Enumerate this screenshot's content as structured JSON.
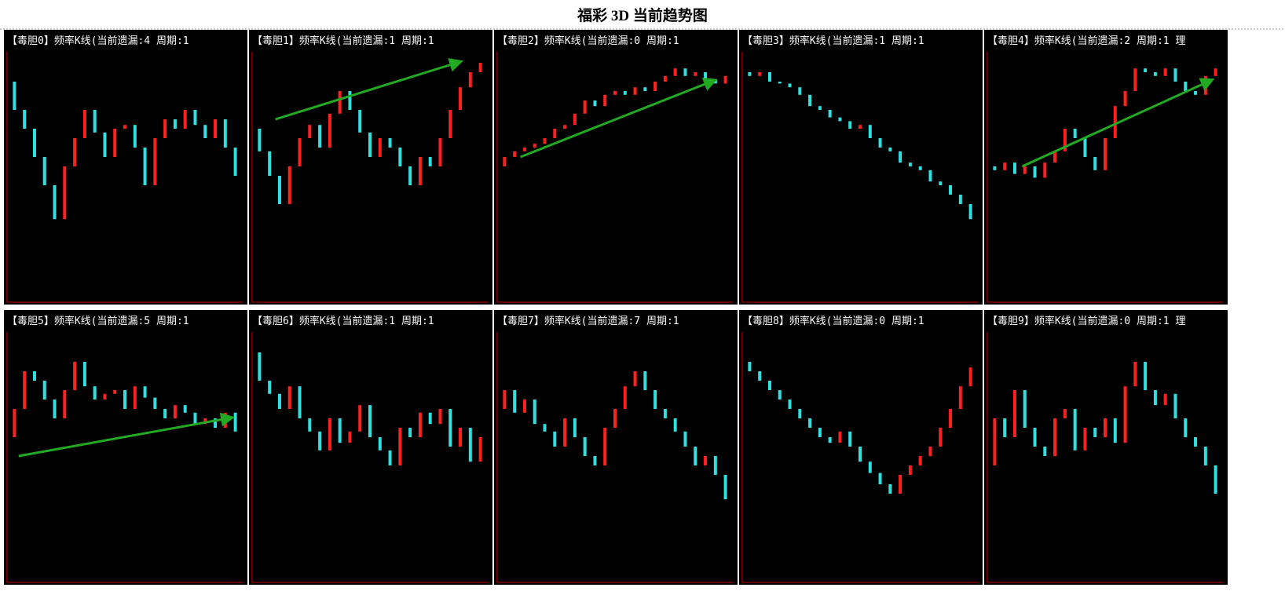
{
  "title": "福彩 3D 当前趋势图",
  "chart_data": [
    {
      "type": "kline",
      "title": "【毒胆0】频率K线(当前遗漏:4 周期:1",
      "ylim": [
        0,
        100
      ],
      "values": [
        85,
        70,
        60,
        45,
        30,
        12,
        40,
        55,
        70,
        58,
        45,
        60,
        62,
        50,
        30,
        55,
        65,
        60,
        70,
        62,
        55,
        65,
        50,
        35
      ]
    },
    {
      "type": "kline",
      "title": "【毒胆1】频率K线(当前遗漏:1 周期:1",
      "ylim": [
        0,
        100
      ],
      "values": [
        60,
        48,
        35,
        20,
        40,
        55,
        62,
        50,
        68,
        80,
        70,
        58,
        45,
        55,
        50,
        40,
        30,
        45,
        40,
        55,
        70,
        82,
        90,
        95
      ]
    },
    {
      "type": "kline",
      "title": "【毒胆2】频率K线(当前遗漏:0 周期:1",
      "ylim": [
        0,
        100
      ],
      "values": [
        40,
        45,
        48,
        50,
        52,
        55,
        60,
        62,
        68,
        75,
        72,
        78,
        80,
        78,
        82,
        80,
        85,
        88,
        92,
        88,
        90,
        86,
        84,
        88
      ]
    },
    {
      "type": "kline",
      "title": "【毒胆3】频率K线(当前遗漏:1 周期:1",
      "ylim": [
        0,
        100
      ],
      "values": [
        90,
        88,
        90,
        85,
        84,
        82,
        78,
        72,
        70,
        66,
        64,
        60,
        62,
        55,
        50,
        48,
        42,
        40,
        38,
        32,
        30,
        25,
        20,
        12
      ]
    },
    {
      "type": "kline",
      "title": "【毒胆4】频率K线(当前遗漏:2 周期:1 理",
      "ylim": [
        0,
        100
      ],
      "values": [
        40,
        38,
        42,
        36,
        40,
        34,
        42,
        48,
        60,
        55,
        45,
        38,
        55,
        72,
        80,
        92,
        90,
        88,
        92,
        85,
        80,
        78,
        88,
        92
      ]
    },
    {
      "type": "kline",
      "title": "【毒胆5】频率K线(当前遗漏:5 周期:1",
      "ylim": [
        0,
        100
      ],
      "values": [
        45,
        60,
        80,
        75,
        65,
        55,
        70,
        85,
        72,
        65,
        68,
        70,
        60,
        72,
        66,
        60,
        55,
        62,
        58,
        52,
        55,
        50,
        58,
        48
      ]
    },
    {
      "type": "kline",
      "title": "【毒胆6】频率K线(当前遗漏:1 周期:1",
      "ylim": [
        0,
        100
      ],
      "values": [
        90,
        75,
        68,
        60,
        72,
        55,
        48,
        38,
        55,
        42,
        48,
        62,
        45,
        38,
        30,
        50,
        45,
        58,
        52,
        60,
        40,
        50,
        32,
        45
      ]
    },
    {
      "type": "kline",
      "title": "【毒胆7】频率K线(当前遗漏:7 周期:1",
      "ylim": [
        0,
        100
      ],
      "values": [
        60,
        70,
        58,
        65,
        52,
        48,
        40,
        55,
        45,
        35,
        30,
        50,
        60,
        72,
        80,
        70,
        60,
        55,
        48,
        40,
        30,
        35,
        25,
        12
      ]
    },
    {
      "type": "kline",
      "title": "【毒胆8】频率K线(当前遗漏:0 周期:1",
      "ylim": [
        0,
        100
      ],
      "values": [
        85,
        80,
        75,
        70,
        65,
        60,
        55,
        50,
        45,
        42,
        48,
        40,
        32,
        26,
        20,
        15,
        25,
        30,
        35,
        40,
        50,
        60,
        72,
        82
      ]
    },
    {
      "type": "kline",
      "title": "【毒胆9】频率K线(当前遗漏:0 周期:1 理",
      "ylim": [
        0,
        100
      ],
      "values": [
        30,
        55,
        45,
        70,
        50,
        40,
        35,
        55,
        60,
        38,
        50,
        45,
        55,
        42,
        72,
        85,
        70,
        62,
        68,
        55,
        45,
        40,
        30,
        15
      ]
    }
  ]
}
